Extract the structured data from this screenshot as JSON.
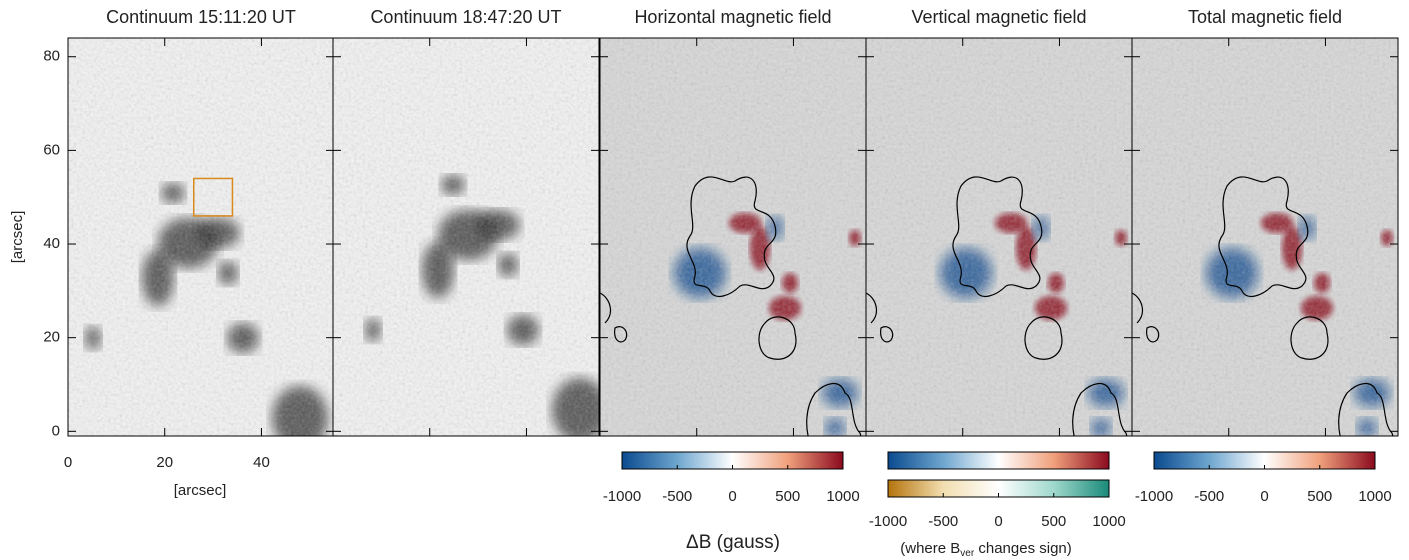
{
  "chart_data": [
    {
      "type": "image",
      "title": "Continuum 15:11:20 UT",
      "xlim": [
        0,
        55
      ],
      "ylim": [
        -1,
        84
      ],
      "xticks": [
        0,
        20,
        40
      ],
      "yticks": [
        0,
        20,
        40,
        60,
        80
      ],
      "xlabel": "[arcsec]",
      "ylabel": "[arcsec]",
      "colors": [
        "#222222",
        "#f4f4f4"
      ]
    },
    {
      "type": "image",
      "title": "Continuum 18:47:20 UT",
      "colors": [
        "#222222",
        "#f4f4f4"
      ]
    },
    {
      "type": "image",
      "title": "Horizontal magnetic field",
      "colors": [
        "#0a4a8f",
        "#ffffff",
        "#8b0a1f"
      ]
    },
    {
      "type": "image",
      "title": "Vertical magnetic field",
      "colors": [
        "#0a4a8f",
        "#ffffff",
        "#8b0a1f"
      ]
    },
    {
      "type": "image",
      "title": "Total magnetic field",
      "colors": [
        "#0a4a8f",
        "#ffffff",
        "#8b0a1f"
      ]
    }
  ],
  "colorbars": [
    {
      "lim": [
        -1000,
        1000
      ],
      "ticks": [
        -1000,
        -500,
        0,
        500,
        1000
      ],
      "colors": [
        "#0a4a8f",
        "#6ea6cf",
        "#ffffff",
        "#f0a07c",
        "#8b0a1f"
      ]
    },
    {
      "lim": [
        -1000,
        1000
      ],
      "colors": [
        "#0a4a8f",
        "#6ea6cf",
        "#ffffff",
        "#f0a07c",
        "#8b0a1f"
      ]
    },
    {
      "lim": [
        -1000,
        1000
      ],
      "ticks": [
        -1000,
        -500,
        0,
        500,
        1000
      ],
      "colors": [
        "#b5730c",
        "#f2deb0",
        "#ffffff",
        "#9fd8cc",
        "#1a8a7a"
      ]
    },
    {
      "lim": [
        -1000,
        1000
      ],
      "ticks": [
        -1000,
        -500,
        0,
        500,
        1000
      ],
      "colors": [
        "#0a4a8f",
        "#6ea6cf",
        "#ffffff",
        "#f0a07c",
        "#8b0a1f"
      ]
    }
  ],
  "colorbar_label": "ΔB (gauss)",
  "note": {
    "before": "(where B",
    "sub": "ver",
    "after": " changes sign)"
  }
}
